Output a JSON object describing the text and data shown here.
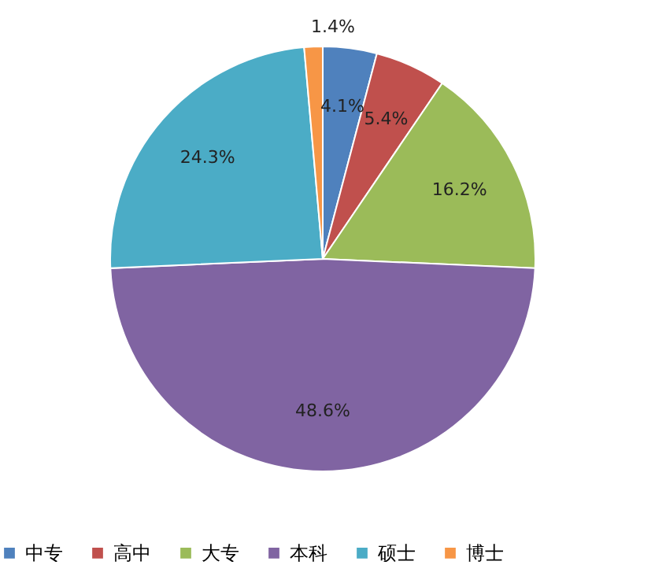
{
  "chart_data": {
    "type": "pie",
    "categories": [
      "中专",
      "高中",
      "大专",
      "本科",
      "硕士",
      "博士"
    ],
    "values": [
      4.1,
      5.4,
      16.2,
      48.6,
      24.3,
      1.4
    ],
    "colors": [
      "#4f81bd",
      "#c0504d",
      "#9bbb59",
      "#8064a2",
      "#4bacc6",
      "#f79646"
    ],
    "value_labels": [
      "4.1%",
      "5.4%",
      "16.2%",
      "48.6%",
      "24.3%",
      "1.4%"
    ],
    "legend": "bottom"
  }
}
